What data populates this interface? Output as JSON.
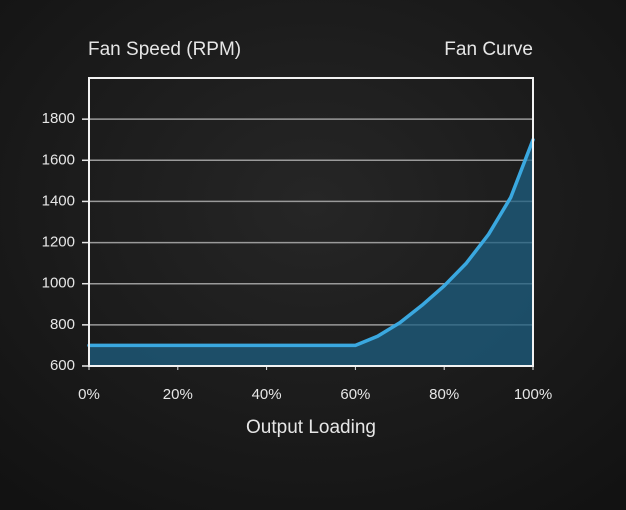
{
  "chart_data": {
    "type": "area",
    "title": "Fan Curve",
    "y_label": "Fan Speed (RPM)",
    "x_label": "Output Loading",
    "x": [
      0,
      60,
      65,
      70,
      75,
      80,
      85,
      90,
      95,
      100
    ],
    "series": [
      {
        "name": "Fan Speed",
        "color": "#3aa8e0",
        "values": [
          700,
          700,
          745,
          810,
          895,
          990,
          1100,
          1240,
          1420,
          1700
        ]
      }
    ],
    "area_color": "#1d5f82",
    "xlim": [
      0,
      100
    ],
    "xticks": [
      {
        "value": 0,
        "label": "0%"
      },
      {
        "value": 20,
        "label": "20%"
      },
      {
        "value": 40,
        "label": "40%"
      },
      {
        "value": 60,
        "label": "60%"
      },
      {
        "value": 80,
        "label": "80%"
      },
      {
        "value": 100,
        "label": "100%"
      }
    ],
    "ylim": [
      600,
      2000
    ],
    "yticks": [
      600,
      800,
      1000,
      1200,
      1400,
      1600,
      1800
    ],
    "grid": true
  }
}
